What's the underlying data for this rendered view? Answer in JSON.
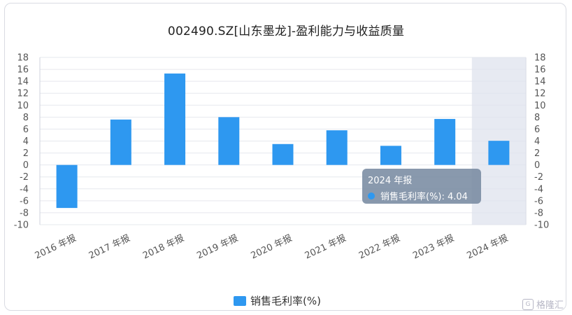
{
  "chart_data": {
    "type": "bar",
    "title": "002490.SZ[山东墨龙]-盈利能力与收益质量",
    "categories": [
      "2016 年报",
      "2017 年报",
      "2018 年报",
      "2019 年报",
      "2020 年报",
      "2021 年报",
      "2022 年报",
      "2023 年报",
      "2024 年报"
    ],
    "series": [
      {
        "name": "销售毛利率(%)",
        "values": [
          -7.2,
          7.6,
          15.3,
          8.0,
          3.5,
          5.8,
          3.2,
          7.7,
          4.04
        ],
        "color": "#2e98f0"
      }
    ],
    "ylim": [
      -10,
      18
    ],
    "yticks": [
      18,
      16,
      14,
      12,
      10,
      8,
      6,
      4,
      2,
      0,
      -2,
      -4,
      -6,
      -8,
      -10
    ],
    "grid": true,
    "legend_position": "bottom-center",
    "highlighted_category": "2024 年报",
    "tooltip": {
      "title": "2024 年报",
      "label": "销售毛利率(%): 4.04"
    }
  },
  "watermark": {
    "text": "格隆汇",
    "icon_letter": "G"
  }
}
